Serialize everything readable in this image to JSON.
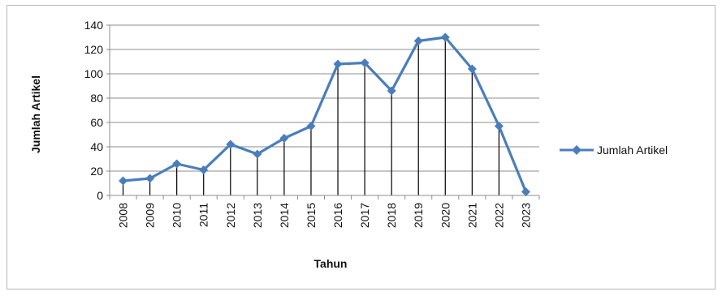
{
  "chart_data": {
    "type": "line",
    "title": "",
    "xlabel": "Tahun",
    "ylabel": "Jumlah Artikel",
    "categories": [
      "2008",
      "2009",
      "2010",
      "2011",
      "2012",
      "2013",
      "2014",
      "2015",
      "2016",
      "2017",
      "2018",
      "2019",
      "2020",
      "2021",
      "2022",
      "2023"
    ],
    "series": [
      {
        "name": "Jumlah Artikel",
        "values": [
          12,
          14,
          26,
          21,
          42,
          34,
          47,
          57,
          108,
          109,
          86,
          127,
          130,
          104,
          57,
          3
        ],
        "color": "#4a7ebb",
        "marker": "diamond",
        "drop_lines": true
      }
    ],
    "ylim": [
      0,
      140
    ],
    "yticks": [
      "0",
      "20",
      "40",
      "60",
      "80",
      "100",
      "120",
      "140"
    ],
    "grid": true,
    "legend_position": "right"
  }
}
